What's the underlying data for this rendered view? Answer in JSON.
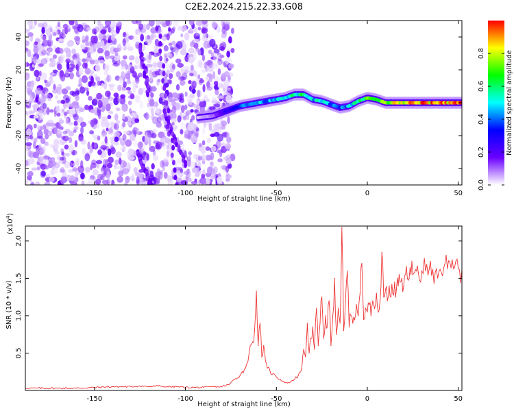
{
  "title": "C2E2.2024.215.22.33.G08",
  "chart_data": [
    {
      "type": "heatmap",
      "xlabel": "Height of straight line (km)",
      "ylabel": "Frequency (Hz)",
      "xlim": [
        -188,
        52
      ],
      "ylim": [
        -50,
        50
      ],
      "x_ticks": [
        -150,
        -100,
        -50,
        0,
        50
      ],
      "y_ticks": [
        -40,
        -20,
        0,
        20,
        40
      ],
      "colorbar": {
        "label": "Normalized spectral amplitude",
        "range": [
          0.0,
          1.0
        ],
        "ticks": [
          0.0,
          0.2,
          0.4,
          0.6,
          0.8
        ],
        "colors": [
          "#ffffff",
          "#6a00ff",
          "#0000ff",
          "#00ffff",
          "#00ff00",
          "#ffff00",
          "#ff0000"
        ]
      },
      "noise_region_x": [
        -188,
        -78
      ],
      "ridge": {
        "x": [
          -93,
          -85,
          -80,
          -75,
          -70,
          -65,
          -60,
          -55,
          -50,
          -45,
          -40,
          -35,
          -30,
          -25,
          -20,
          -15,
          -10,
          -5,
          0,
          5,
          10,
          15,
          20,
          30,
          40,
          52
        ],
        "freq": [
          -9,
          -8,
          -6,
          -4,
          -2,
          -1,
          0,
          1,
          2,
          3,
          5,
          5,
          2,
          1,
          -1,
          -3,
          -2,
          1,
          3,
          2,
          0,
          0,
          0,
          0,
          0,
          0
        ],
        "amplitude": [
          0.05,
          0.1,
          0.2,
          0.35,
          0.4,
          0.45,
          0.5,
          0.45,
          0.55,
          0.6,
          0.55,
          0.6,
          0.5,
          0.55,
          0.45,
          0.4,
          0.5,
          0.6,
          0.75,
          0.65,
          0.8,
          0.85,
          0.9,
          0.95,
          1.0,
          1.0
        ]
      },
      "streaks": [
        {
          "x": [
            -115,
            -105
          ],
          "freq": [
            45,
            -50
          ]
        },
        {
          "x": [
            -112,
            -100
          ],
          "freq": [
            -5,
            -38
          ]
        },
        {
          "x": [
            -126,
            -119
          ],
          "freq": [
            -30,
            -50
          ]
        },
        {
          "x": [
            -125,
            -120
          ],
          "freq": [
            35,
            5
          ]
        }
      ]
    },
    {
      "type": "line",
      "xlabel": "Height of straight line (km)",
      "ylabel": "SNR (10 * v/v)",
      "y_scale_label": "(x10",
      "y_scale_exp": "4",
      "y_scale_close": ")",
      "xlim": [
        -188,
        52
      ],
      "ylim": [
        0,
        2.2
      ],
      "x_ticks": [
        -150,
        -100,
        -50,
        0,
        50
      ],
      "y_ticks": [
        0.5,
        1.0,
        1.5,
        2.0
      ],
      "series": [
        {
          "color": "#ee3333",
          "x": [
            -188,
            -170,
            -160,
            -150,
            -140,
            -130,
            -125,
            -120,
            -115,
            -110,
            -105,
            -100,
            -95,
            -90,
            -85,
            -80,
            -76,
            -73,
            -70,
            -67,
            -65,
            -63,
            -62,
            -61,
            -60,
            -59,
            -58,
            -57,
            -56,
            -55,
            -52,
            -50,
            -48,
            -46,
            -44,
            -42,
            -40,
            -38,
            -36,
            -35,
            -34,
            -33,
            -32,
            -31,
            -30,
            -29,
            -28,
            -27,
            -26,
            -25,
            -24,
            -23,
            -22,
            -21,
            -20,
            -19,
            -18,
            -17,
            -16,
            -15,
            -14,
            -13,
            -12,
            -11,
            -10,
            -9,
            -8,
            -7,
            -6,
            -5,
            -4,
            -3,
            -2,
            -1,
            0,
            1,
            2,
            3,
            4,
            5,
            6,
            7,
            8,
            9,
            10,
            11,
            12,
            13,
            14,
            15,
            16,
            17,
            18,
            19,
            20,
            21,
            22,
            23,
            24,
            25,
            26,
            27,
            28,
            30,
            32,
            34,
            36,
            38,
            40,
            42,
            44,
            46,
            48,
            50,
            52
          ],
          "y": [
            0.03,
            0.03,
            0.03,
            0.04,
            0.05,
            0.05,
            0.06,
            0.05,
            0.06,
            0.05,
            0.05,
            0.04,
            0.04,
            0.04,
            0.05,
            0.05,
            0.08,
            0.15,
            0.2,
            0.3,
            0.5,
            0.65,
            0.8,
            1.33,
            0.6,
            0.9,
            0.45,
            0.6,
            0.38,
            0.3,
            0.22,
            0.18,
            0.15,
            0.12,
            0.1,
            0.12,
            0.15,
            0.2,
            0.3,
            0.55,
            0.45,
            0.9,
            0.5,
            0.7,
            0.85,
            0.55,
            1.1,
            0.6,
            0.9,
            1.25,
            0.7,
            1.0,
            0.85,
            1.2,
            0.6,
            1.0,
            1.5,
            0.75,
            1.1,
            0.9,
            2.18,
            0.8,
            1.2,
            1.6,
            0.85,
            1.0,
            0.9,
            0.95,
            1.15,
            1.0,
            1.3,
            1.7,
            0.95,
            1.1,
            1.05,
            1.15,
            1.0,
            1.2,
            1.1,
            1.3,
            1.05,
            1.2,
            1.85,
            1.25,
            1.35,
            1.2,
            1.4,
            1.25,
            1.3,
            1.45,
            1.35,
            1.4,
            1.45,
            1.5,
            1.4,
            1.55,
            1.5,
            1.5,
            1.55,
            1.55,
            1.58,
            1.6,
            1.58,
            1.6,
            1.6,
            1.62,
            1.62,
            1.63,
            1.62,
            1.64,
            1.63,
            1.64,
            1.65,
            1.64,
            1.62
          ]
        }
      ]
    }
  ]
}
